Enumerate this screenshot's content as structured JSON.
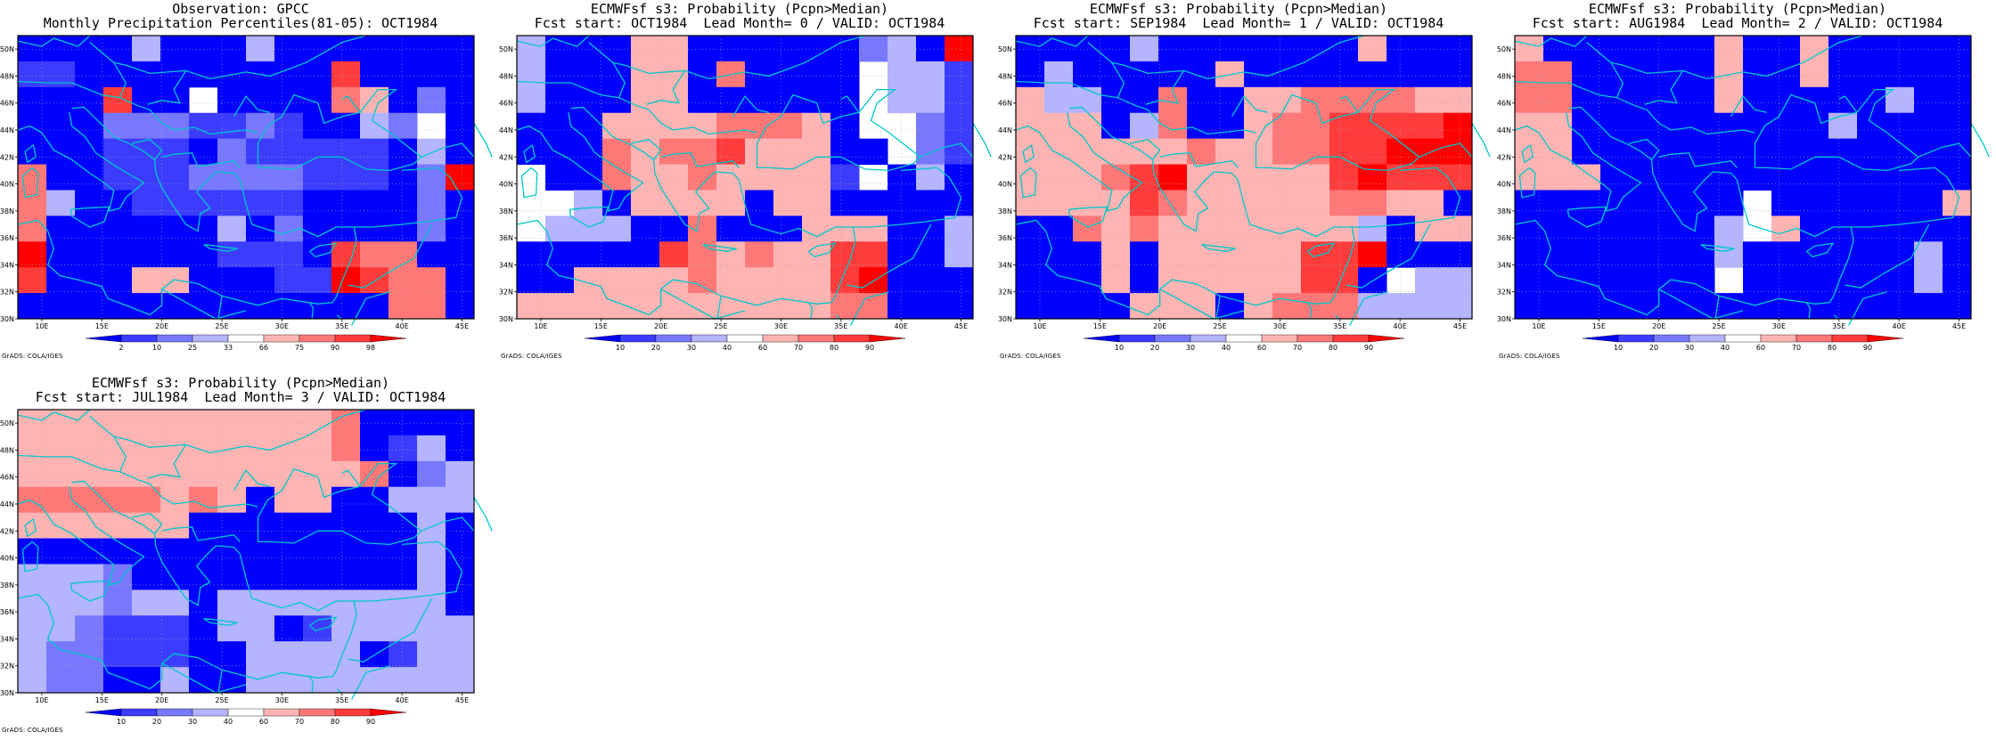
{
  "map_layout": {
    "lon_range": [
      8,
      46
    ],
    "lat_range": [
      30,
      51
    ],
    "x_ticks": [
      10,
      15,
      20,
      25,
      30,
      35,
      40,
      45
    ],
    "y_ticks": [
      30,
      32,
      34,
      36,
      38,
      40,
      42,
      44,
      46,
      48,
      50
    ],
    "x_tick_labels": [
      "10E",
      "15E",
      "20E",
      "25E",
      "30E",
      "35E",
      "40E",
      "45E"
    ],
    "y_tick_labels": [
      "30N",
      "32N",
      "34N",
      "36N",
      "38N",
      "40N",
      "42N",
      "44N",
      "46N",
      "48N",
      "50N"
    ],
    "coastline_color": "#00c8c8",
    "grid": "dotted",
    "grid_cell": "2.5deg x 2.5deg"
  },
  "grads_label": "GrADS: COLA/IGES",
  "obs_colorbar": {
    "labels": [
      "2",
      "10",
      "25",
      "33",
      "66",
      "75",
      "90",
      "98"
    ],
    "colors": [
      "#0000ff",
      "#3c3cff",
      "#7878ff",
      "#b4b4ff",
      "#ffffff",
      "#ffb4b4",
      "#ff7878",
      "#ff3c3c",
      "#ff0000"
    ]
  },
  "prob_colorbar": {
    "labels": [
      "10",
      "20",
      "30",
      "40",
      "60",
      "70",
      "80",
      "90"
    ],
    "colors": [
      "#0000ff",
      "#3c3cff",
      "#7878ff",
      "#b4b4ff",
      "#ffffff",
      "#ffb4b4",
      "#ff7878",
      "#ff3c3c",
      "#ff0000"
    ]
  },
  "panels": [
    {
      "title1": "Observation: GPCC",
      "title2": "Monthly Precipitation Percentiles(81-05): OCT1984",
      "colorbar": "obs",
      "grid": [
        "0000300030000000",
        "1100000000070000",
        "0007004000065020",
        "0002221121003240",
        "0001110211111030",
        "6001112222111028",
        "6300111111000020",
        "6000000302000020",
        "8000000111076600",
        "7000550001187660",
        "0000000000000660"
      ]
    },
    {
      "title1": "ECMWFsf s3: Probability (Pcpn>Median)",
      "title2": "Fcst start: OCT1984  Lead Month= 0 / VALID: OCT1984",
      "colorbar": "prob",
      "grid": [
        "3000550000002308",
        "3000550600004331",
        "3000550000004331",
        "0005555666504421",
        "0006566755500421",
        "4006556555514030",
        "4430555505500000",
        "4333006000555003",
        "0000076565577003",
        "0055556555578000",
        "5555555555566000"
      ]
    },
    {
      "title1": "ECMWFsf s3: Probability (Pcpn>Median)",
      "title2": "Fcst start: SEP1984  Lead Month= 1 / VALID: OCT1984",
      "colorbar": "prob",
      "grid": [
        "0000300000005000",
        "0300000500000000",
        "5330060055666655",
        "5550360056677778",
        "5555556556677888",
        "5556785555578777",
        "5555765555566550",
        "0065655555553055",
        "0005055555778000",
        "0005055555770433",
        "0000555056663333"
      ]
    },
    {
      "title1": "ECMWFsf s3: Probability (Pcpn>Median)",
      "title2": "Fcst start: AUG1984  Lead Month= 2 / VALID: OCT1984",
      "colorbar": "prob",
      "grid": [
        "5000000500500000",
        "6600000500500000",
        "6600000500000300",
        "5500000000030000",
        "5500000000000000",
        "5550000000000000",
        "0000000040000005",
        "0000000345000000",
        "0000000300000030",
        "0000000400000030",
        "0000000000000000"
      ]
    },
    {
      "title1": "ECMWFsf s3: Probability (Pcpn>Median)",
      "title2": "Fcst start: JUL1984  Lead Month= 3 / VALID: OCT1984",
      "colorbar": "prob",
      "grid": [
        "5555555555560000",
        "5555555555560130",
        "5555555555556023",
        "6666656505500333",
        "5555550000000030",
        "0000000000000030",
        "3332000000000030",
        "3332330333333330",
        "3321110330133333",
        "3221110033330133",
        "3220030033333333"
      ]
    }
  ]
}
